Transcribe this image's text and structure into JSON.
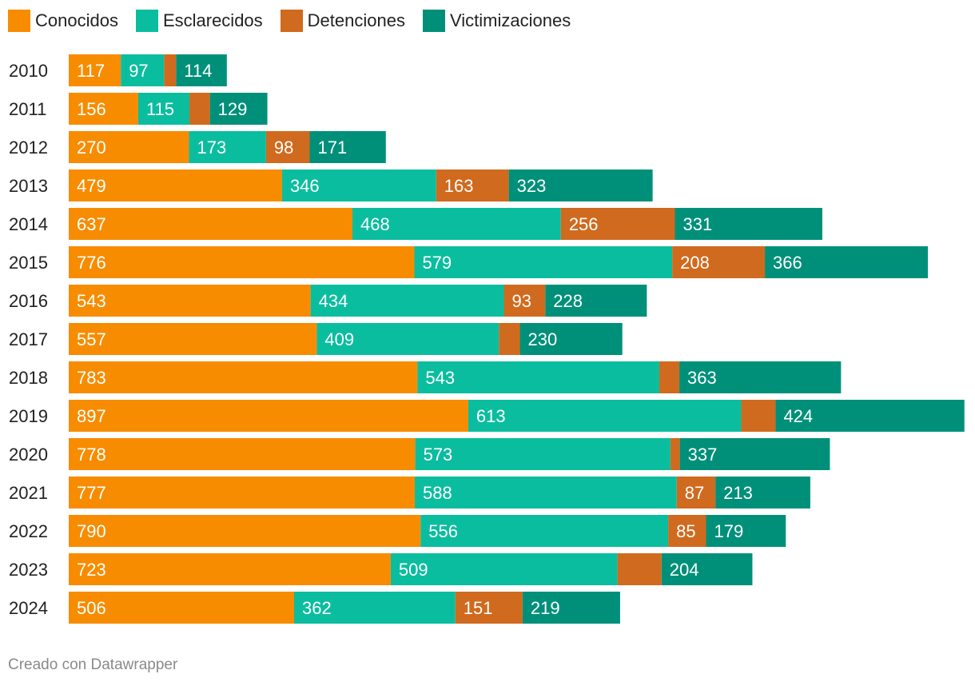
{
  "chart_data": {
    "type": "bar",
    "orientation": "horizontal",
    "stacked": true,
    "categories": [
      "2010",
      "2011",
      "2012",
      "2013",
      "2014",
      "2015",
      "2016",
      "2017",
      "2018",
      "2019",
      "2020",
      "2021",
      "2022",
      "2023",
      "2024"
    ],
    "series": [
      {
        "name": "Conocidos",
        "color": "#f78c00",
        "values": [
          117,
          156,
          270,
          479,
          637,
          776,
          543,
          557,
          783,
          897,
          778,
          777,
          790,
          723,
          506
        ],
        "labels": [
          "117",
          "156",
          "270",
          "479",
          "637",
          "776",
          "543",
          "557",
          "783",
          "897",
          "778",
          "777",
          "790",
          "723",
          "506"
        ]
      },
      {
        "name": "Esclarecidos",
        "color": "#0bbd9f",
        "values": [
          97,
          115,
          173,
          346,
          468,
          579,
          434,
          409,
          543,
          613,
          573,
          588,
          556,
          509,
          362
        ],
        "labels": [
          "97",
          "115",
          "173",
          "346",
          "468",
          "579",
          "434",
          "409",
          "543",
          "613",
          "573",
          "588",
          "556",
          "509",
          "362"
        ]
      },
      {
        "name": "Detenciones",
        "color": "#d06a1e",
        "values": [
          27,
          46,
          98,
          163,
          256,
          208,
          93,
          47,
          45,
          77,
          21,
          87,
          85,
          99,
          151
        ],
        "labels": [
          "",
          "",
          "98",
          "163",
          "256",
          "208",
          "93",
          "",
          "",
          "",
          "",
          "87",
          "85",
          "",
          "151"
        ]
      },
      {
        "name": "Victimizaciones",
        "color": "#00907a",
        "values": [
          114,
          129,
          171,
          323,
          331,
          366,
          228,
          230,
          363,
          424,
          337,
          213,
          179,
          204,
          219
        ],
        "labels": [
          "114",
          "129",
          "171",
          "323",
          "331",
          "366",
          "228",
          "230",
          "363",
          "424",
          "337",
          "213",
          "179",
          "204",
          "219"
        ]
      }
    ],
    "title": "",
    "xlabel": "",
    "ylabel": "",
    "grid": false,
    "legend_position": "top-left"
  },
  "legend": {
    "items": [
      {
        "label": "Conocidos",
        "color": "#f78c00"
      },
      {
        "label": "Esclarecidos",
        "color": "#0bbd9f"
      },
      {
        "label": "Detenciones",
        "color": "#d06a1e"
      },
      {
        "label": "Victimizaciones",
        "color": "#00907a"
      }
    ]
  },
  "footer": {
    "credit": "Creado con Datawrapper"
  }
}
